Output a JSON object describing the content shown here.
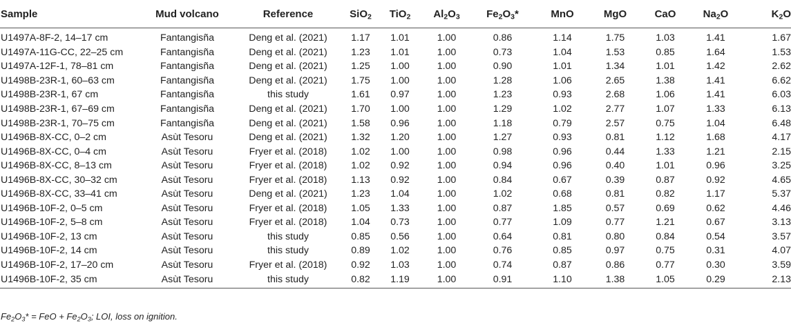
{
  "table": {
    "columns": [
      {
        "key": "sample",
        "base": "Sample",
        "sub": "",
        "tail": ""
      },
      {
        "key": "volcano",
        "base": "Mud volcano",
        "sub": "",
        "tail": ""
      },
      {
        "key": "reference",
        "base": "Reference",
        "sub": "",
        "tail": ""
      },
      {
        "key": "sio2",
        "base": "SiO",
        "sub": "2",
        "tail": ""
      },
      {
        "key": "tio2",
        "base": "TiO",
        "sub": "2",
        "tail": ""
      },
      {
        "key": "al2o3",
        "base": "Al",
        "sub": "2",
        "tail": "O3"
      },
      {
        "key": "fe2o3",
        "base": "Fe",
        "sub": "2",
        "tail": "O3*"
      },
      {
        "key": "mno",
        "base": "MnO",
        "sub": "",
        "tail": ""
      },
      {
        "key": "mgo",
        "base": "MgO",
        "sub": "",
        "tail": ""
      },
      {
        "key": "cao",
        "base": "CaO",
        "sub": "",
        "tail": ""
      },
      {
        "key": "na2o",
        "base": "Na",
        "sub": "2",
        "tail": "O"
      },
      {
        "key": "k2o",
        "base": "K",
        "sub": "2",
        "tail": "O"
      }
    ],
    "rows": [
      [
        "U1497A-8F-2, 14–17 cm",
        "Fantangisña",
        "Deng et al. (2021)",
        "1.17",
        "1.01",
        "1.00",
        "0.86",
        "1.14",
        "1.75",
        "1.03",
        "1.41",
        "1.67"
      ],
      [
        "U1497A-11G-CC, 22–25 cm",
        "Fantangisña",
        "Deng et al. (2021)",
        "1.23",
        "1.01",
        "1.00",
        "0.73",
        "1.04",
        "1.53",
        "0.85",
        "1.64",
        "1.53"
      ],
      [
        "U1497A-12F-1, 78–81 cm",
        "Fantangisña",
        "Deng et al. (2021)",
        "1.25",
        "1.00",
        "1.00",
        "0.90",
        "1.01",
        "1.34",
        "1.01",
        "1.42",
        "2.62"
      ],
      [
        "U1498B-23R-1, 60–63 cm",
        "Fantangisña",
        "Deng et al. (2021)",
        "1.75",
        "1.00",
        "1.00",
        "1.28",
        "1.06",
        "2.65",
        "1.38",
        "1.41",
        "6.62"
      ],
      [
        "U1498B-23R-1, 67 cm",
        "Fantangisña",
        "this study",
        "1.61",
        "0.97",
        "1.00",
        "1.23",
        "0.93",
        "2.68",
        "1.06",
        "1.41",
        "6.03"
      ],
      [
        "U1498B-23R-1, 67–69 cm",
        "Fantangisña",
        "Deng et al. (2021)",
        "1.70",
        "1.00",
        "1.00",
        "1.29",
        "1.02",
        "2.77",
        "1.07",
        "1.33",
        "6.13"
      ],
      [
        "U1498B-23R-1, 70–75 cm",
        "Fantangisña",
        "Deng et al. (2021)",
        "1.58",
        "0.96",
        "1.00",
        "1.18",
        "0.79",
        "2.57",
        "0.75",
        "1.04",
        "6.48"
      ],
      [
        "U1496B-8X-CC, 0–2 cm",
        "Asùt Tesoru",
        "Deng et al. (2021)",
        "1.32",
        "1.20",
        "1.00",
        "1.27",
        "0.93",
        "0.81",
        "1.12",
        "1.68",
        "4.17"
      ],
      [
        "U1496B-8X-CC, 0–4 cm",
        "Asùt Tesoru",
        "Fryer et al. (2018)",
        "1.02",
        "1.00",
        "1.00",
        "0.98",
        "0.96",
        "0.44",
        "1.33",
        "1.21",
        "2.15"
      ],
      [
        "U1496B-8X-CC, 8–13 cm",
        "Asùt Tesoru",
        "Fryer et al. (2018)",
        "1.02",
        "0.92",
        "1.00",
        "0.94",
        "0.96",
        "0.40",
        "1.01",
        "0.96",
        "3.25"
      ],
      [
        "U1496B-8X-CC, 30–32 cm",
        "Asùt Tesoru",
        "Fryer et al. (2018)",
        "1.13",
        "0.92",
        "1.00",
        "0.84",
        "0.67",
        "0.39",
        "0.87",
        "0.92",
        "4.65"
      ],
      [
        "U1496B-8X-CC, 33–41 cm",
        "Asùt Tesoru",
        "Deng et al. (2021)",
        "1.23",
        "1.04",
        "1.00",
        "1.02",
        "0.68",
        "0.81",
        "0.82",
        "1.17",
        "5.37"
      ],
      [
        "U1496B-10F-2, 0–5 cm",
        "Asùt Tesoru",
        "Fryer et al. (2018)",
        "1.05",
        "1.33",
        "1.00",
        "0.87",
        "1.85",
        "0.57",
        "0.69",
        "0.62",
        "4.46"
      ],
      [
        "U1496B-10F-2, 5–8 cm",
        "Asùt Tesoru",
        "Fryer et al. (2018)",
        "1.04",
        "0.73",
        "1.00",
        "0.77",
        "1.09",
        "0.77",
        "1.21",
        "0.67",
        "3.13"
      ],
      [
        "U1496B-10F-2, 13 cm",
        "Asùt Tesoru",
        "this study",
        "0.85",
        "0.56",
        "1.00",
        "0.64",
        "0.81",
        "0.80",
        "0.84",
        "0.54",
        "3.57"
      ],
      [
        "U1496B-10F-2, 14 cm",
        "Asùt Tesoru",
        "this study",
        "0.89",
        "1.02",
        "1.00",
        "0.76",
        "0.85",
        "0.97",
        "0.75",
        "0.31",
        "4.07"
      ],
      [
        "U1496B-10F-2, 17–20 cm",
        "Asùt Tesoru",
        "Fryer et al. (2018)",
        "0.92",
        "1.03",
        "1.00",
        "0.74",
        "0.87",
        "0.86",
        "0.77",
        "0.30",
        "3.59"
      ],
      [
        "U1496B-10F-2, 35 cm",
        "Asùt Tesoru",
        "this study",
        "0.82",
        "1.19",
        "1.00",
        "0.91",
        "1.10",
        "1.38",
        "1.05",
        "0.29",
        "2.13"
      ]
    ]
  },
  "footnote": {
    "a": "Fe",
    "a_sub": "2",
    "b": "O",
    "b_sub": "3",
    "c": "* = FeO + Fe",
    "c_sub": "2",
    "d": "O",
    "d_sub": "3",
    "e": "; LOI, loss on ignition."
  }
}
